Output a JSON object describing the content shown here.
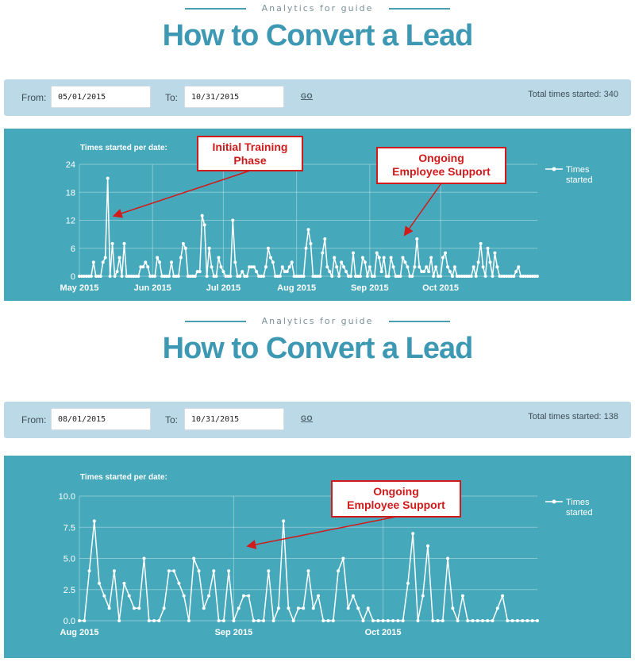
{
  "panels": [
    {
      "eyebrow": "Analytics for guide",
      "title": "How to Convert a Lead",
      "filter": {
        "from_label": "From:",
        "from_value": "05/01/2015",
        "to_label": "To:",
        "to_value": "10/31/2015",
        "go_label": "GO",
        "total_label": "Total times started: 340"
      },
      "chart_data": {
        "type": "line",
        "title": "Times started per date:",
        "series": [
          {
            "name": "Times started",
            "values": [
              0,
              0,
              0,
              0,
              0,
              0,
              3,
              0,
              0,
              0,
              3,
              4,
              21,
              0,
              7,
              0,
              1,
              4,
              0,
              7,
              0,
              0,
              0,
              0,
              0,
              0,
              2,
              2,
              3,
              2,
              0,
              0,
              0,
              4,
              3,
              0,
              0,
              0,
              0,
              3,
              0,
              0,
              0,
              4,
              7,
              6,
              0,
              0,
              0,
              0,
              1,
              1,
              13,
              11,
              0,
              6,
              2,
              0,
              0,
              4,
              2,
              1,
              0,
              0,
              0,
              12,
              3,
              0,
              0,
              1,
              0,
              0,
              2,
              2,
              2,
              1,
              0,
              0,
              0,
              2,
              6,
              4,
              3,
              0,
              0,
              0,
              2,
              1,
              1,
              2,
              3,
              0,
              0,
              0,
              0,
              0,
              6,
              10,
              7,
              0,
              0,
              0,
              0,
              5,
              8,
              2,
              1,
              0,
              4,
              2,
              0,
              3,
              2,
              1,
              0,
              0,
              5,
              0,
              0,
              0,
              4,
              3,
              0,
              2,
              0,
              0,
              5,
              4,
              1,
              4,
              0,
              0,
              4,
              2,
              0,
              0,
              0,
              4,
              3,
              2,
              0,
              0,
              2,
              8,
              2,
              1,
              1,
              2,
              1,
              4,
              0,
              2,
              0,
              0,
              4,
              5,
              2,
              1,
              0,
              2,
              0,
              0,
              0,
              0,
              0,
              0,
              0,
              2,
              0,
              3,
              7,
              2,
              0,
              6,
              3,
              0,
              5,
              2,
              0,
              0,
              0,
              0,
              0,
              0,
              0,
              1,
              2,
              0,
              0,
              0,
              0,
              0,
              0,
              0,
              0
            ]
          }
        ],
        "x_ticks": [
          "May 2015",
          "Jun 2015",
          "Jul 2015",
          "Aug 2015",
          "Sep 2015",
          "Oct 2015"
        ],
        "x_tick_index": [
          0,
          31,
          61,
          92,
          123,
          153
        ],
        "y_ticks": [
          "0",
          "6",
          "12",
          "18",
          "24"
        ],
        "ylim": [
          0,
          24
        ],
        "legend": [
          "Times",
          "started"
        ],
        "annotations": [
          {
            "lines": [
              "Initial Training",
              "Phase"
            ],
            "target_index": 15,
            "target_value": 13
          },
          {
            "lines": [
              "Ongoing",
              "Employee Support"
            ],
            "target_index": 138,
            "target_value": 9
          }
        ]
      }
    },
    {
      "eyebrow": "Analytics for guide",
      "title": "How to Convert a Lead",
      "filter": {
        "from_label": "From:",
        "from_value": "08/01/2015",
        "to_label": "To:",
        "to_value": "10/31/2015",
        "go_label": "GO",
        "total_label": "Total times started: 138"
      },
      "chart_data": {
        "type": "line",
        "title": "Times started per date:",
        "series": [
          {
            "name": "Times started",
            "values": [
              0,
              0,
              4,
              8,
              3,
              2,
              1,
              4,
              0,
              3,
              2,
              1,
              1,
              5,
              0,
              0,
              0,
              1,
              4,
              4,
              3,
              2,
              0,
              5,
              4,
              1,
              2,
              4,
              0,
              0,
              4,
              0,
              1,
              2,
              2,
              0,
              0,
              0,
              4,
              0,
              1,
              8,
              1,
              0,
              1,
              1,
              4,
              1,
              2,
              0,
              0,
              0,
              4,
              5,
              1,
              2,
              1,
              0,
              1,
              0,
              0,
              0,
              0,
              0,
              0,
              0,
              3,
              7,
              0,
              2,
              6,
              0,
              0,
              0,
              5,
              1,
              0,
              2,
              0,
              0,
              0,
              0,
              0,
              0,
              1,
              2,
              0,
              0,
              0,
              0,
              0,
              0,
              0
            ]
          }
        ],
        "x_ticks": [
          "Aug 2015",
          "Sep 2015",
          "Oct 2015"
        ],
        "x_tick_index": [
          0,
          31,
          61
        ],
        "y_ticks": [
          "0.0",
          "2.5",
          "5.0",
          "7.5",
          "10.0"
        ],
        "ylim": [
          0,
          10
        ],
        "legend": [
          "Times",
          "started"
        ],
        "annotations": [
          {
            "lines": [
              "Ongoing",
              "Employee Support"
            ],
            "target_index": 34,
            "target_value": 6
          }
        ]
      }
    }
  ]
}
